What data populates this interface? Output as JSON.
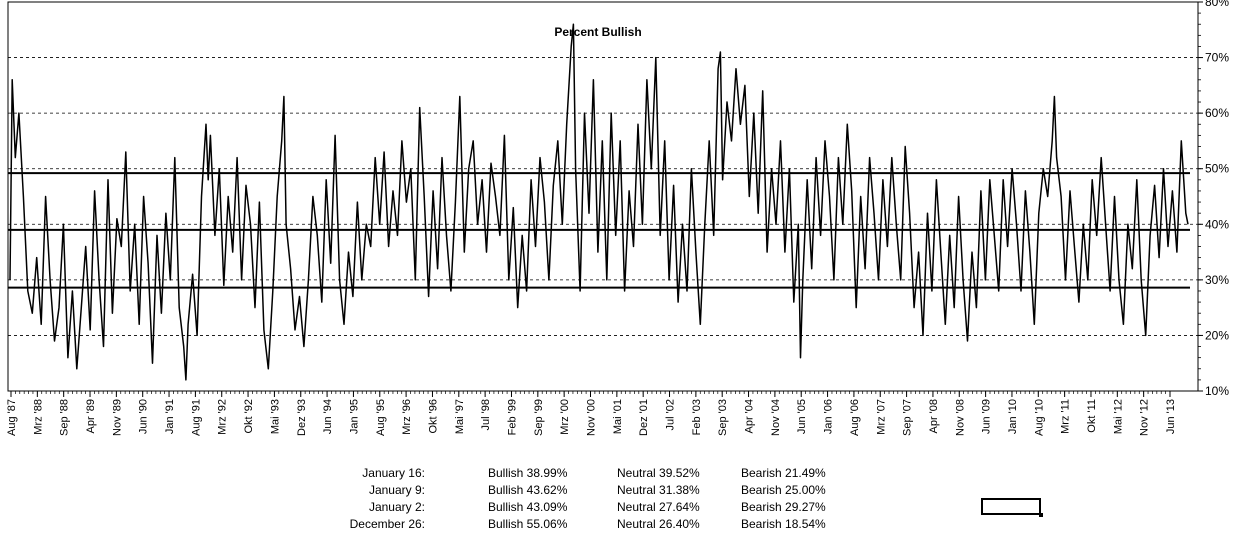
{
  "chart_data": {
    "type": "line",
    "title": "Percent Bullish",
    "xlabel": "",
    "ylabel": "",
    "ylim": [
      10,
      80
    ],
    "y_ticks": [
      "10%",
      "20%",
      "30%",
      "40%",
      "50%",
      "60%",
      "70%",
      "80%"
    ],
    "y_tick_values": [
      10,
      20,
      30,
      40,
      50,
      60,
      70,
      80
    ],
    "grid": "horizontal dashed",
    "x_labels": [
      "Aug '87",
      "Mrz '88",
      "Sep '88",
      "Apr '89",
      "Nov '89",
      "Jun '90",
      "Jan '91",
      "Aug '91",
      "Mrz '92",
      "Okt '92",
      "Mai '93",
      "Dez '93",
      "Jun '94",
      "Jan '95",
      "Aug '95",
      "Mrz '96",
      "Okt '96",
      "Mai '97",
      "Jul '98",
      "Feb '99",
      "Sep '99",
      "Mrz '00",
      "Nov '00",
      "Mai '01",
      "Dez '01",
      "Jul '02",
      "Feb '03",
      "Sep '03",
      "Apr '04",
      "Nov '04",
      "Jun '05",
      "Jan '06",
      "Aug '06",
      "Mrz '07",
      "Sep '07",
      "Apr '08",
      "Nov '08",
      "Jun '09",
      "Jan '10",
      "Aug '10",
      "Mrz '11",
      "Okt '11",
      "Mai '12",
      "Nov '12",
      "Jun '13"
    ],
    "x_range": [
      1987.6,
      2014.05
    ],
    "reference_lines": [
      {
        "name": "upper band",
        "value": 49.2
      },
      {
        "name": "average",
        "value": 39.0
      },
      {
        "name": "lower band",
        "value": 28.6
      }
    ],
    "series": [
      {
        "name": "Percent Bullish",
        "points": [
          [
            1987.6,
            30
          ],
          [
            1987.65,
            66
          ],
          [
            1987.72,
            52
          ],
          [
            1987.8,
            60
          ],
          [
            1987.9,
            45
          ],
          [
            1988.0,
            28
          ],
          [
            1988.1,
            24
          ],
          [
            1988.2,
            34
          ],
          [
            1988.3,
            22
          ],
          [
            1988.4,
            45
          ],
          [
            1988.5,
            30
          ],
          [
            1988.6,
            19
          ],
          [
            1988.7,
            25
          ],
          [
            1988.8,
            40
          ],
          [
            1988.9,
            16
          ],
          [
            1989.0,
            28
          ],
          [
            1989.1,
            14
          ],
          [
            1989.2,
            25
          ],
          [
            1989.3,
            36
          ],
          [
            1989.4,
            21
          ],
          [
            1989.5,
            46
          ],
          [
            1989.6,
            30
          ],
          [
            1989.7,
            18
          ],
          [
            1989.8,
            48
          ],
          [
            1989.9,
            24
          ],
          [
            1990.0,
            41
          ],
          [
            1990.1,
            36
          ],
          [
            1990.2,
            53
          ],
          [
            1990.3,
            28
          ],
          [
            1990.4,
            40
          ],
          [
            1990.5,
            22
          ],
          [
            1990.6,
            45
          ],
          [
            1990.7,
            33
          ],
          [
            1990.8,
            15
          ],
          [
            1990.9,
            38
          ],
          [
            1991.0,
            24
          ],
          [
            1991.1,
            42
          ],
          [
            1991.2,
            30
          ],
          [
            1991.3,
            52
          ],
          [
            1991.4,
            25
          ],
          [
            1991.5,
            18
          ],
          [
            1991.55,
            12
          ],
          [
            1991.6,
            22
          ],
          [
            1991.7,
            31
          ],
          [
            1991.8,
            20
          ],
          [
            1991.9,
            45
          ],
          [
            1992.0,
            58
          ],
          [
            1992.05,
            48
          ],
          [
            1992.1,
            56
          ],
          [
            1992.2,
            38
          ],
          [
            1992.3,
            50
          ],
          [
            1992.4,
            29
          ],
          [
            1992.5,
            45
          ],
          [
            1992.6,
            35
          ],
          [
            1992.7,
            52
          ],
          [
            1992.8,
            30
          ],
          [
            1992.9,
            47
          ],
          [
            1993.0,
            40
          ],
          [
            1993.1,
            25
          ],
          [
            1993.2,
            44
          ],
          [
            1993.3,
            21
          ],
          [
            1993.4,
            14
          ],
          [
            1993.5,
            28
          ],
          [
            1993.6,
            45
          ],
          [
            1993.7,
            55
          ],
          [
            1993.75,
            63
          ],
          [
            1993.8,
            40
          ],
          [
            1993.9,
            32
          ],
          [
            1994.0,
            21
          ],
          [
            1994.1,
            27
          ],
          [
            1994.2,
            18
          ],
          [
            1994.3,
            30
          ],
          [
            1994.4,
            45
          ],
          [
            1994.5,
            38
          ],
          [
            1994.6,
            26
          ],
          [
            1994.7,
            48
          ],
          [
            1994.8,
            33
          ],
          [
            1994.9,
            56
          ],
          [
            1995.0,
            30
          ],
          [
            1995.1,
            22
          ],
          [
            1995.2,
            35
          ],
          [
            1995.3,
            27
          ],
          [
            1995.4,
            44
          ],
          [
            1995.5,
            30
          ],
          [
            1995.6,
            40
          ],
          [
            1995.7,
            36
          ],
          [
            1995.8,
            52
          ],
          [
            1995.9,
            40
          ],
          [
            1996.0,
            53
          ],
          [
            1996.1,
            36
          ],
          [
            1996.2,
            46
          ],
          [
            1996.3,
            38
          ],
          [
            1996.4,
            55
          ],
          [
            1996.5,
            44
          ],
          [
            1996.6,
            50
          ],
          [
            1996.7,
            30
          ],
          [
            1996.8,
            61
          ],
          [
            1996.9,
            45
          ],
          [
            1997.0,
            27
          ],
          [
            1997.1,
            46
          ],
          [
            1997.2,
            32
          ],
          [
            1997.3,
            52
          ],
          [
            1997.4,
            38
          ],
          [
            1997.5,
            28
          ],
          [
            1997.6,
            44
          ],
          [
            1997.7,
            63
          ],
          [
            1997.8,
            35
          ],
          [
            1997.9,
            50
          ],
          [
            1998.0,
            55
          ],
          [
            1998.1,
            40
          ],
          [
            1998.2,
            48
          ],
          [
            1998.3,
            35
          ],
          [
            1998.4,
            51
          ],
          [
            1998.5,
            45
          ],
          [
            1998.6,
            38
          ],
          [
            1998.7,
            56
          ],
          [
            1998.8,
            30
          ],
          [
            1998.9,
            43
          ],
          [
            1999.0,
            25
          ],
          [
            1999.1,
            38
          ],
          [
            1999.2,
            28
          ],
          [
            1999.3,
            48
          ],
          [
            1999.4,
            36
          ],
          [
            1999.5,
            52
          ],
          [
            1999.6,
            44
          ],
          [
            1999.7,
            30
          ],
          [
            1999.8,
            47
          ],
          [
            1999.9,
            55
          ],
          [
            2000.0,
            40
          ],
          [
            2000.1,
            58
          ],
          [
            2000.2,
            72
          ],
          [
            2000.25,
            76
          ],
          [
            2000.3,
            50
          ],
          [
            2000.4,
            28
          ],
          [
            2000.5,
            60
          ],
          [
            2000.6,
            42
          ],
          [
            2000.7,
            66
          ],
          [
            2000.8,
            35
          ],
          [
            2000.9,
            55
          ],
          [
            2001.0,
            30
          ],
          [
            2001.1,
            60
          ],
          [
            2001.2,
            38
          ],
          [
            2001.3,
            55
          ],
          [
            2001.4,
            28
          ],
          [
            2001.5,
            46
          ],
          [
            2001.6,
            36
          ],
          [
            2001.7,
            58
          ],
          [
            2001.8,
            40
          ],
          [
            2001.9,
            66
          ],
          [
            2002.0,
            50
          ],
          [
            2002.1,
            70
          ],
          [
            2002.2,
            38
          ],
          [
            2002.3,
            55
          ],
          [
            2002.4,
            30
          ],
          [
            2002.5,
            47
          ],
          [
            2002.6,
            26
          ],
          [
            2002.7,
            40
          ],
          [
            2002.8,
            28
          ],
          [
            2002.9,
            50
          ],
          [
            2003.0,
            35
          ],
          [
            2003.1,
            22
          ],
          [
            2003.2,
            40
          ],
          [
            2003.3,
            55
          ],
          [
            2003.4,
            38
          ],
          [
            2003.5,
            68
          ],
          [
            2003.55,
            71
          ],
          [
            2003.6,
            48
          ],
          [
            2003.7,
            62
          ],
          [
            2003.8,
            55
          ],
          [
            2003.9,
            68
          ],
          [
            2004.0,
            58
          ],
          [
            2004.1,
            65
          ],
          [
            2004.2,
            45
          ],
          [
            2004.3,
            60
          ],
          [
            2004.4,
            42
          ],
          [
            2004.5,
            64
          ],
          [
            2004.6,
            35
          ],
          [
            2004.7,
            50
          ],
          [
            2004.8,
            40
          ],
          [
            2004.9,
            55
          ],
          [
            2005.0,
            35
          ],
          [
            2005.1,
            50
          ],
          [
            2005.2,
            26
          ],
          [
            2005.3,
            40
          ],
          [
            2005.35,
            16
          ],
          [
            2005.4,
            30
          ],
          [
            2005.5,
            48
          ],
          [
            2005.6,
            32
          ],
          [
            2005.7,
            52
          ],
          [
            2005.8,
            38
          ],
          [
            2005.9,
            55
          ],
          [
            2006.0,
            45
          ],
          [
            2006.1,
            30
          ],
          [
            2006.2,
            52
          ],
          [
            2006.3,
            40
          ],
          [
            2006.4,
            58
          ],
          [
            2006.5,
            46
          ],
          [
            2006.6,
            25
          ],
          [
            2006.7,
            45
          ],
          [
            2006.8,
            32
          ],
          [
            2006.9,
            52
          ],
          [
            2007.0,
            42
          ],
          [
            2007.1,
            30
          ],
          [
            2007.2,
            48
          ],
          [
            2007.3,
            36
          ],
          [
            2007.4,
            52
          ],
          [
            2007.5,
            40
          ],
          [
            2007.6,
            30
          ],
          [
            2007.7,
            54
          ],
          [
            2007.8,
            42
          ],
          [
            2007.9,
            25
          ],
          [
            2008.0,
            35
          ],
          [
            2008.1,
            20
          ],
          [
            2008.2,
            42
          ],
          [
            2008.3,
            28
          ],
          [
            2008.4,
            48
          ],
          [
            2008.5,
            35
          ],
          [
            2008.6,
            22
          ],
          [
            2008.7,
            38
          ],
          [
            2008.8,
            25
          ],
          [
            2008.9,
            45
          ],
          [
            2009.0,
            30
          ],
          [
            2009.1,
            19
          ],
          [
            2009.2,
            35
          ],
          [
            2009.3,
            25
          ],
          [
            2009.4,
            46
          ],
          [
            2009.5,
            30
          ],
          [
            2009.6,
            48
          ],
          [
            2009.7,
            38
          ],
          [
            2009.8,
            28
          ],
          [
            2009.9,
            48
          ],
          [
            2010.0,
            36
          ],
          [
            2010.1,
            50
          ],
          [
            2010.2,
            40
          ],
          [
            2010.3,
            28
          ],
          [
            2010.4,
            46
          ],
          [
            2010.5,
            35
          ],
          [
            2010.6,
            22
          ],
          [
            2010.7,
            42
          ],
          [
            2010.8,
            50
          ],
          [
            2010.9,
            45
          ],
          [
            2011.0,
            55
          ],
          [
            2011.05,
            63
          ],
          [
            2011.1,
            52
          ],
          [
            2011.2,
            45
          ],
          [
            2011.3,
            30
          ],
          [
            2011.4,
            46
          ],
          [
            2011.5,
            36
          ],
          [
            2011.6,
            26
          ],
          [
            2011.7,
            40
          ],
          [
            2011.8,
            30
          ],
          [
            2011.9,
            48
          ],
          [
            2012.0,
            38
          ],
          [
            2012.1,
            52
          ],
          [
            2012.2,
            40
          ],
          [
            2012.3,
            28
          ],
          [
            2012.4,
            45
          ],
          [
            2012.5,
            30
          ],
          [
            2012.6,
            22
          ],
          [
            2012.7,
            40
          ],
          [
            2012.8,
            32
          ],
          [
            2012.9,
            48
          ],
          [
            2013.0,
            30
          ],
          [
            2013.1,
            20
          ],
          [
            2013.2,
            38
          ],
          [
            2013.3,
            47
          ],
          [
            2013.4,
            34
          ],
          [
            2013.5,
            50
          ],
          [
            2013.6,
            36
          ],
          [
            2013.7,
            46
          ],
          [
            2013.8,
            35
          ],
          [
            2013.9,
            55
          ],
          [
            2014.0,
            42
          ],
          [
            2014.05,
            40
          ]
        ]
      }
    ]
  },
  "sentiment_table": [
    {
      "date": "January 16:",
      "bullish": "Bullish 38.99%",
      "neutral": "Neutral 39.52%",
      "bearish": "Bearish 21.49%"
    },
    {
      "date": "January 9:",
      "bullish": "Bullish 43.62%",
      "neutral": "Neutral 31.38%",
      "bearish": "Bearish 25.00%"
    },
    {
      "date": "January 2:",
      "bullish": "Bullish 43.09%",
      "neutral": "Neutral 27.64%",
      "bearish": "Bearish 29.27%"
    },
    {
      "date": "December 26:",
      "bullish": "Bullish 55.06%",
      "neutral": "Neutral 26.40%",
      "bearish": "Bearish 18.54%"
    }
  ]
}
